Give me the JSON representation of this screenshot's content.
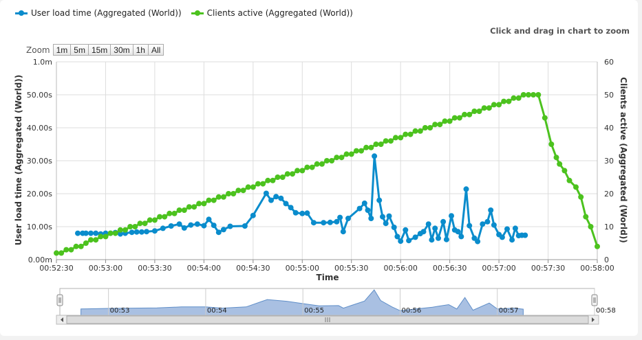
{
  "legend": {
    "series1": "User load time (Aggregated (World))",
    "series2": "Clients active (Aggregated (World))"
  },
  "hint": "Click and drag in chart to zoom",
  "zoom": {
    "label": "Zoom",
    "buttons": [
      "1m",
      "5m",
      "15m",
      "30m",
      "1h",
      "All"
    ]
  },
  "colors": {
    "series1": "#0a8ccc",
    "series2": "#4cc21e",
    "navigator": "#9ab5dd"
  },
  "chart_data": {
    "type": "line",
    "xlabel": "Time",
    "ylabel_left": "User load time (Aggregated (World))",
    "ylabel_right": "Clients active (Aggregated (World))",
    "x_range": [
      "00:52:30",
      "00:58:00"
    ],
    "x_ticks": [
      "00:52:30",
      "00:53:00",
      "00:53:30",
      "00:54:00",
      "00:54:30",
      "00:55:00",
      "00:55:30",
      "00:56:00",
      "00:56:30",
      "00:57:00",
      "00:57:30",
      "00:58:00"
    ],
    "y_left_ticks": [
      "0.00m",
      "10.00s",
      "20.00s",
      "30.00s",
      "40.00s",
      "50.00s",
      "1.0m"
    ],
    "y_left_range": [
      0,
      60
    ],
    "y_right_ticks": [
      "0",
      "10",
      "20",
      "30",
      "40",
      "50",
      "60"
    ],
    "y_right_range": [
      0,
      60
    ],
    "grid": true,
    "legend_position": "top-left",
    "series": [
      {
        "name": "User load time (Aggregated (World))",
        "axis": "left",
        "unit": "s",
        "points": [
          [
            "00:52:43",
            8.0
          ],
          [
            "00:52:46",
            8.0
          ],
          [
            "00:52:48",
            8.0
          ],
          [
            "00:52:51",
            8.0
          ],
          [
            "00:52:54",
            8.0
          ],
          [
            "00:52:57",
            7.8
          ],
          [
            "00:53:00",
            8.0
          ],
          [
            "00:53:03",
            8.0
          ],
          [
            "00:53:06",
            8.2
          ],
          [
            "00:53:09",
            7.8
          ],
          [
            "00:53:12",
            8.0
          ],
          [
            "00:53:16",
            8.3
          ],
          [
            "00:53:19",
            8.4
          ],
          [
            "00:53:22",
            8.4
          ],
          [
            "00:53:25",
            8.5
          ],
          [
            "00:53:30",
            8.7
          ],
          [
            "00:53:35",
            9.5
          ],
          [
            "00:53:40",
            10.2
          ],
          [
            "00:53:45",
            10.8
          ],
          [
            "00:53:48",
            9.6
          ],
          [
            "00:53:52",
            10.5
          ],
          [
            "00:53:56",
            10.8
          ],
          [
            "00:54:00",
            10.3
          ],
          [
            "00:54:03",
            12.2
          ],
          [
            "00:54:06",
            10.4
          ],
          [
            "00:54:09",
            8.3
          ],
          [
            "00:54:12",
            9.1
          ],
          [
            "00:54:16",
            10.1
          ],
          [
            "00:54:25",
            10.2
          ],
          [
            "00:54:30",
            13.4
          ],
          [
            "00:54:38",
            20.1
          ],
          [
            "00:54:41",
            18.0
          ],
          [
            "00:54:44",
            19.1
          ],
          [
            "00:54:47",
            18.6
          ],
          [
            "00:54:50",
            17.0
          ],
          [
            "00:54:53",
            15.8
          ],
          [
            "00:54:56",
            14.2
          ],
          [
            "00:55:00",
            14.0
          ],
          [
            "00:55:03",
            14.1
          ],
          [
            "00:55:07",
            11.2
          ],
          [
            "00:55:13",
            11.2
          ],
          [
            "00:55:17",
            11.3
          ],
          [
            "00:55:21",
            11.5
          ],
          [
            "00:55:23",
            12.8
          ],
          [
            "00:55:25",
            8.5
          ],
          [
            "00:55:28",
            12.5
          ],
          [
            "00:55:35",
            15.5
          ],
          [
            "00:55:38",
            17.1
          ],
          [
            "00:55:40",
            15.0
          ],
          [
            "00:55:42",
            12.5
          ],
          [
            "00:55:44",
            31.4
          ],
          [
            "00:55:47",
            18.0
          ],
          [
            "00:55:49",
            13.0
          ],
          [
            "00:55:51",
            11.0
          ],
          [
            "00:55:53",
            13.2
          ],
          [
            "00:55:56",
            9.8
          ],
          [
            "00:55:58",
            7.0
          ],
          [
            "00:56:00",
            5.6
          ],
          [
            "00:56:03",
            9.0
          ],
          [
            "00:56:05",
            5.8
          ],
          [
            "00:56:09",
            6.8
          ],
          [
            "00:56:12",
            7.9
          ],
          [
            "00:56:14",
            8.5
          ],
          [
            "00:56:17",
            10.8
          ],
          [
            "00:56:19",
            6.0
          ],
          [
            "00:56:21",
            9.5
          ],
          [
            "00:56:23",
            6.5
          ],
          [
            "00:56:26",
            11.5
          ],
          [
            "00:56:28",
            6.1
          ],
          [
            "00:56:31",
            13.3
          ],
          [
            "00:56:33",
            9.0
          ],
          [
            "00:56:35",
            8.5
          ],
          [
            "00:56:37",
            7.0
          ],
          [
            "00:56:40",
            21.4
          ],
          [
            "00:56:42",
            10.3
          ],
          [
            "00:56:45",
            6.5
          ],
          [
            "00:56:47",
            5.5
          ],
          [
            "00:56:50",
            10.8
          ],
          [
            "00:56:53",
            11.5
          ],
          [
            "00:56:55",
            15.0
          ],
          [
            "00:56:57",
            10.5
          ],
          [
            "00:57:00",
            7.6
          ],
          [
            "00:57:02",
            6.8
          ],
          [
            "00:57:05",
            9.3
          ],
          [
            "00:57:08",
            6.0
          ],
          [
            "00:57:10",
            9.5
          ],
          [
            "00:57:12",
            7.3
          ],
          [
            "00:57:14",
            7.4
          ],
          [
            "00:57:16",
            7.4
          ]
        ]
      },
      {
        "name": "Clients active (Aggregated (World))",
        "axis": "right",
        "points": [
          [
            "00:52:30",
            2
          ],
          [
            "00:52:33",
            2
          ],
          [
            "00:52:36",
            3
          ],
          [
            "00:52:39",
            3
          ],
          [
            "00:52:42",
            4
          ],
          [
            "00:52:45",
            4
          ],
          [
            "00:52:48",
            5
          ],
          [
            "00:52:51",
            6
          ],
          [
            "00:52:54",
            6
          ],
          [
            "00:52:57",
            7
          ],
          [
            "00:53:00",
            7
          ],
          [
            "00:53:03",
            8
          ],
          [
            "00:53:06",
            8
          ],
          [
            "00:53:09",
            9
          ],
          [
            "00:53:12",
            9
          ],
          [
            "00:53:15",
            10
          ],
          [
            "00:53:18",
            10
          ],
          [
            "00:53:21",
            11
          ],
          [
            "00:53:24",
            11
          ],
          [
            "00:53:27",
            12
          ],
          [
            "00:53:30",
            12
          ],
          [
            "00:53:33",
            13
          ],
          [
            "00:53:36",
            13
          ],
          [
            "00:53:39",
            14
          ],
          [
            "00:53:42",
            14
          ],
          [
            "00:53:45",
            15
          ],
          [
            "00:53:48",
            15
          ],
          [
            "00:53:51",
            16
          ],
          [
            "00:53:54",
            16
          ],
          [
            "00:53:57",
            17
          ],
          [
            "00:54:00",
            17
          ],
          [
            "00:54:03",
            18
          ],
          [
            "00:54:06",
            18
          ],
          [
            "00:54:09",
            19
          ],
          [
            "00:54:12",
            19
          ],
          [
            "00:54:15",
            20
          ],
          [
            "00:54:18",
            20
          ],
          [
            "00:54:21",
            21
          ],
          [
            "00:54:24",
            21
          ],
          [
            "00:54:27",
            22
          ],
          [
            "00:54:30",
            22
          ],
          [
            "00:54:33",
            23
          ],
          [
            "00:54:36",
            23
          ],
          [
            "00:54:39",
            24
          ],
          [
            "00:54:42",
            24
          ],
          [
            "00:54:45",
            25
          ],
          [
            "00:54:48",
            25
          ],
          [
            "00:54:51",
            26
          ],
          [
            "00:54:54",
            26
          ],
          [
            "00:54:57",
            27
          ],
          [
            "00:55:00",
            27
          ],
          [
            "00:55:03",
            28
          ],
          [
            "00:55:06",
            28
          ],
          [
            "00:55:09",
            29
          ],
          [
            "00:55:12",
            29
          ],
          [
            "00:55:15",
            30
          ],
          [
            "00:55:18",
            30
          ],
          [
            "00:55:21",
            31
          ],
          [
            "00:55:24",
            31
          ],
          [
            "00:55:27",
            32
          ],
          [
            "00:55:30",
            32
          ],
          [
            "00:55:33",
            33
          ],
          [
            "00:55:36",
            33
          ],
          [
            "00:55:39",
            34
          ],
          [
            "00:55:42",
            34
          ],
          [
            "00:55:45",
            35
          ],
          [
            "00:55:48",
            35
          ],
          [
            "00:55:51",
            36
          ],
          [
            "00:55:54",
            36
          ],
          [
            "00:55:57",
            37
          ],
          [
            "00:56:00",
            37
          ],
          [
            "00:56:03",
            38
          ],
          [
            "00:56:06",
            38
          ],
          [
            "00:56:09",
            39
          ],
          [
            "00:56:12",
            39
          ],
          [
            "00:56:15",
            40
          ],
          [
            "00:56:18",
            40
          ],
          [
            "00:56:21",
            41
          ],
          [
            "00:56:24",
            41
          ],
          [
            "00:56:27",
            42
          ],
          [
            "00:56:30",
            42
          ],
          [
            "00:56:33",
            43
          ],
          [
            "00:56:36",
            43
          ],
          [
            "00:56:39",
            44
          ],
          [
            "00:56:42",
            44
          ],
          [
            "00:56:45",
            45
          ],
          [
            "00:56:48",
            45
          ],
          [
            "00:56:51",
            46
          ],
          [
            "00:56:54",
            46
          ],
          [
            "00:56:57",
            47
          ],
          [
            "00:57:00",
            47
          ],
          [
            "00:57:03",
            48
          ],
          [
            "00:57:06",
            48
          ],
          [
            "00:57:09",
            49
          ],
          [
            "00:57:12",
            49
          ],
          [
            "00:57:15",
            50
          ],
          [
            "00:57:18",
            50
          ],
          [
            "00:57:21",
            50
          ],
          [
            "00:57:24",
            50
          ],
          [
            "00:57:28",
            43
          ],
          [
            "00:57:32",
            35
          ],
          [
            "00:57:35",
            31
          ],
          [
            "00:57:37",
            29
          ],
          [
            "00:57:40",
            27
          ],
          [
            "00:57:43",
            24
          ],
          [
            "00:57:47",
            22
          ],
          [
            "00:57:50",
            19
          ],
          [
            "00:57:53",
            13
          ],
          [
            "00:57:56",
            10
          ],
          [
            "00:58:00",
            4
          ]
        ]
      }
    ],
    "navigator": {
      "x_ticks": [
        "00:53",
        "00:54",
        "00:55",
        "00:56",
        "00:57",
        "00:58"
      ],
      "profile": [
        [
          "00:52:43",
          0.25
        ],
        [
          "00:53:00",
          0.27
        ],
        [
          "00:53:30",
          0.29
        ],
        [
          "00:53:45",
          0.33
        ],
        [
          "00:54:00",
          0.33
        ],
        [
          "00:54:10",
          0.28
        ],
        [
          "00:54:25",
          0.33
        ],
        [
          "00:54:38",
          0.62
        ],
        [
          "00:54:50",
          0.55
        ],
        [
          "00:55:00",
          0.46
        ],
        [
          "00:55:10",
          0.37
        ],
        [
          "00:55:22",
          0.38
        ],
        [
          "00:55:25",
          0.28
        ],
        [
          "00:55:38",
          0.56
        ],
        [
          "00:55:44",
          1.0
        ],
        [
          "00:55:48",
          0.58
        ],
        [
          "00:55:55",
          0.33
        ],
        [
          "00:56:00",
          0.18
        ],
        [
          "00:56:10",
          0.25
        ],
        [
          "00:56:20",
          0.32
        ],
        [
          "00:56:30",
          0.42
        ],
        [
          "00:56:35",
          0.25
        ],
        [
          "00:56:40",
          0.7
        ],
        [
          "00:56:45",
          0.2
        ],
        [
          "00:56:55",
          0.48
        ],
        [
          "00:57:00",
          0.25
        ],
        [
          "00:57:10",
          0.28
        ],
        [
          "00:57:16",
          0.24
        ]
      ]
    }
  }
}
